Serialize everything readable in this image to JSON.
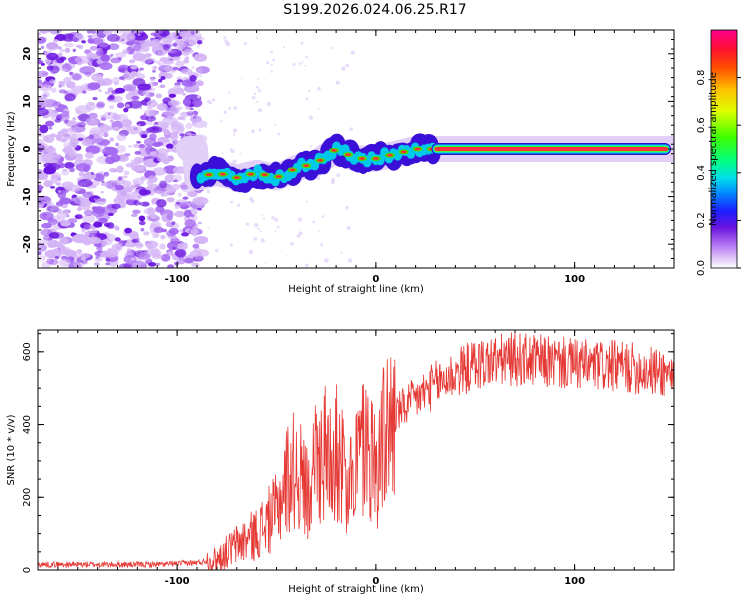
{
  "title": "S199.2026.024.06.25.R17",
  "colors": {
    "snr_line": "#e53935",
    "scatter": "#8a2be2",
    "axis": "#000000"
  },
  "chart_data": [
    {
      "type": "heatmap",
      "name": "spectrogram",
      "title": "",
      "xlabel": "Height of straight line (km)",
      "ylabel": "Frequency (Hz)",
      "xlim": [
        -170,
        150
      ],
      "ylim": [
        -25,
        25
      ],
      "x_ticks": [
        -100,
        0,
        100
      ],
      "x_tick_labels": [
        "-100",
        "0",
        "100"
      ],
      "y_ticks": [
        -20,
        -10,
        0,
        10,
        20
      ],
      "y_tick_labels": [
        "-20",
        "-10",
        "0",
        "10",
        "20"
      ],
      "colorbar": {
        "label": "Normalized spectral amplitude",
        "range": [
          0,
          1
        ],
        "ticks": [
          0.0,
          0.2,
          0.4,
          0.6,
          0.8
        ],
        "tick_labels": [
          "0.0",
          "0.2",
          "0.4",
          "0.6",
          "0.8"
        ],
        "colors": [
          "#ffffff",
          "#d8b4f5",
          "#8a2be2",
          "#3a0fd8",
          "#0050ff",
          "#00c8ff",
          "#00ff80",
          "#40ff00",
          "#c8ff00",
          "#ffd000",
          "#ff7a00",
          "#ff2020",
          "#ff0090"
        ]
      },
      "ridge": {
        "description_points_x": [
          -90,
          -80,
          -70,
          -60,
          -50,
          -40,
          -30,
          -20,
          -10,
          0,
          10,
          20,
          30,
          150
        ],
        "description_points_y": [
          -6,
          -5,
          -6,
          -5,
          -6,
          -4,
          -3,
          0,
          -2,
          -2,
          -1,
          0,
          0,
          0
        ]
      },
      "noise_region_x": [
        -170,
        -90
      ]
    },
    {
      "type": "line",
      "name": "snr",
      "title": "",
      "xlabel": "Height of straight line (km)",
      "ylabel": "SNR (10 * v/v)",
      "xlim": [
        -170,
        150
      ],
      "ylim": [
        0,
        660
      ],
      "x_ticks": [
        -100,
        0,
        100
      ],
      "x_tick_labels": [
        "-100",
        "0",
        "100"
      ],
      "y_ticks": [
        0,
        200,
        400,
        600
      ],
      "y_tick_labels": [
        "0",
        "200",
        "400",
        "600"
      ],
      "series": [
        {
          "name": "SNR",
          "x": [
            -170,
            -150,
            -130,
            -110,
            -90,
            -80,
            -70,
            -60,
            -50,
            -45,
            -40,
            -35,
            -30,
            -25,
            -20,
            -15,
            -10,
            -5,
            0,
            5,
            10,
            20,
            30,
            40,
            50,
            60,
            70,
            80,
            90,
            100,
            110,
            120,
            130,
            140,
            150
          ],
          "values": [
            15,
            15,
            15,
            15,
            20,
            30,
            70,
            100,
            160,
            250,
            280,
            220,
            300,
            320,
            330,
            250,
            300,
            350,
            280,
            380,
            430,
            470,
            510,
            540,
            565,
            575,
            580,
            575,
            570,
            565,
            560,
            560,
            555,
            545,
            540
          ]
        }
      ]
    }
  ]
}
